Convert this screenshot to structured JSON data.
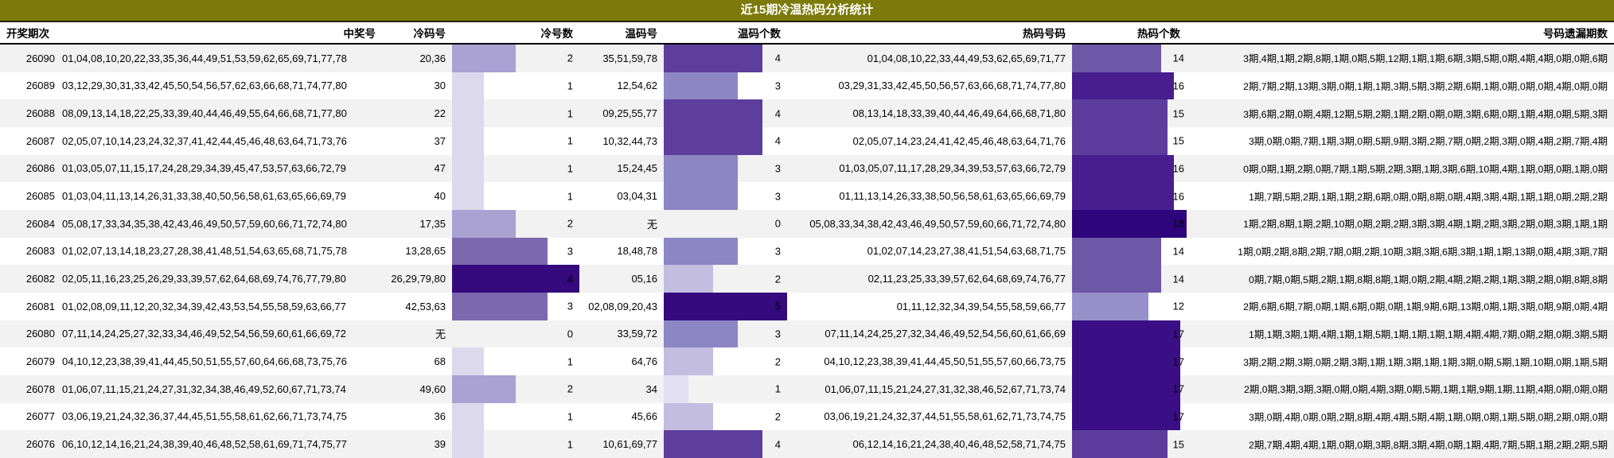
{
  "title": "近15期冷温热码分析统计",
  "columns": {
    "period": "开奖期次",
    "winning": "中奖号",
    "cold_numbers": "冷码号",
    "cold_count": "冷号数",
    "warm_numbers": "温码号",
    "warm_count": "温码个数",
    "hot_numbers": "热码号码",
    "hot_count": "热码个数",
    "omission": "号码遗漏期数"
  },
  "colors": {
    "title_bg": "#7c7a0a",
    "row_alt": "#f2f2f2",
    "cold_bar": {
      "1": "#dcd9ec",
      "2": "#a9a2d3",
      "3": "#7b68af",
      "4": "#340a7d"
    },
    "warm_bar": {
      "1": "#e3e0f1",
      "2": "#c3bee0",
      "3": "#8d86c4",
      "4": "#5d3e9d",
      "5": "#340a7d"
    },
    "hot_bar": {
      "12": "#9790ca",
      "14": "#6d57a7",
      "15": "#5c3c9c",
      "16": "#481e8e",
      "17": "#3a0e84",
      "18": "#2e057a"
    }
  },
  "bar_scales": {
    "cold": 4,
    "warm": 5,
    "hot": 18
  },
  "rows": [
    {
      "period": "26090",
      "winning": "01,04,08,10,20,22,33,35,36,44,49,51,53,59,62,65,69,71,77,78",
      "cold_numbers": "20,36",
      "cold_count": 2,
      "warm_numbers": "35,51,59,78",
      "warm_count": 4,
      "hot_numbers": "01,04,08,10,22,33,44,49,53,62,65,69,71,77",
      "hot_count": 14,
      "omission": "3期,4期,1期,2期,8期,1期,0期,5期,12期,1期,1期,6期,3期,5期,0期,4期,4期,0期,0期,6期"
    },
    {
      "period": "26089",
      "winning": "03,12,29,30,31,33,42,45,50,54,56,57,62,63,66,68,71,74,77,80",
      "cold_numbers": "30",
      "cold_count": 1,
      "warm_numbers": "12,54,62",
      "warm_count": 3,
      "hot_numbers": "03,29,31,33,42,45,50,56,57,63,66,68,71,74,77,80",
      "hot_count": 16,
      "omission": "2期,7期,2期,13期,3期,0期,1期,1期,3期,5期,3期,2期,6期,1期,0期,0期,0期,4期,0期,0期"
    },
    {
      "period": "26088",
      "winning": "08,09,13,14,18,22,25,33,39,40,44,46,49,55,64,66,68,71,77,80",
      "cold_numbers": "22",
      "cold_count": 1,
      "warm_numbers": "09,25,55,77",
      "warm_count": 4,
      "hot_numbers": "08,13,14,18,33,39,40,44,46,49,64,66,68,71,80",
      "hot_count": 15,
      "omission": "3期,6期,2期,0期,4期,12期,5期,2期,1期,2期,0期,0期,3期,6期,0期,1期,4期,0期,5期,3期"
    },
    {
      "period": "26087",
      "winning": "02,05,07,10,14,23,24,32,37,41,42,44,45,46,48,63,64,71,73,76",
      "cold_numbers": "37",
      "cold_count": 1,
      "warm_numbers": "10,32,44,73",
      "warm_count": 4,
      "hot_numbers": "02,05,07,14,23,24,41,42,45,46,48,63,64,71,76",
      "hot_count": 15,
      "omission": "3期,0期,0期,7期,1期,3期,0期,5期,9期,3期,2期,7期,0期,2期,3期,0期,4期,2期,7期,4期"
    },
    {
      "period": "26086",
      "winning": "01,03,05,07,11,15,17,24,28,29,34,39,45,47,53,57,63,66,72,79",
      "cold_numbers": "47",
      "cold_count": 1,
      "warm_numbers": "15,24,45",
      "warm_count": 3,
      "hot_numbers": "01,03,05,07,11,17,28,29,34,39,53,57,63,66,72,79",
      "hot_count": 16,
      "omission": "0期,0期,1期,2期,0期,7期,1期,5期,2期,3期,1期,3期,6期,10期,4期,1期,0期,0期,1期,0期"
    },
    {
      "period": "26085",
      "winning": "01,03,04,11,13,14,26,31,33,38,40,50,56,58,61,63,65,66,69,79",
      "cold_numbers": "40",
      "cold_count": 1,
      "warm_numbers": "03,04,31",
      "warm_count": 3,
      "hot_numbers": "01,11,13,14,26,33,38,50,56,58,61,63,65,66,69,79",
      "hot_count": 16,
      "omission": "1期,7期,5期,2期,1期,1期,2期,6期,0期,0期,8期,0期,4期,3期,4期,1期,1期,0期,2期,2期"
    },
    {
      "period": "26084",
      "winning": "05,08,17,33,34,35,38,42,43,46,49,50,57,59,60,66,71,72,74,80",
      "cold_numbers": "17,35",
      "cold_count": 2,
      "warm_numbers": "无",
      "warm_count": 0,
      "hot_numbers": "05,08,33,34,38,42,43,46,49,50,57,59,60,66,71,72,74,80",
      "hot_count": 18,
      "omission": "1期,2期,8期,1期,2期,10期,0期,2期,2期,3期,3期,4期,1期,2期,3期,2期,0期,3期,1期,1期"
    },
    {
      "period": "26083",
      "winning": "01,02,07,13,14,18,23,27,28,38,41,48,51,54,63,65,68,71,75,78",
      "cold_numbers": "13,28,65",
      "cold_count": 3,
      "warm_numbers": "18,48,78",
      "warm_count": 3,
      "hot_numbers": "01,02,07,14,23,27,38,41,51,54,63,68,71,75",
      "hot_count": 14,
      "omission": "1期,0期,2期,8期,2期,7期,0期,2期,10期,3期,3期,6期,3期,1期,1期,13期,0期,4期,3期,7期"
    },
    {
      "period": "26082",
      "winning": "02,05,11,16,23,25,26,29,33,39,57,62,64,68,69,74,76,77,79,80",
      "cold_numbers": "26,29,79,80",
      "cold_count": 4,
      "warm_numbers": "05,16",
      "warm_count": 2,
      "hot_numbers": "02,11,23,25,33,39,57,62,64,68,69,74,76,77",
      "hot_count": 14,
      "omission": "0期,7期,0期,5期,2期,1期,8期,8期,1期,0期,2期,4期,2期,2期,1期,3期,2期,0期,8期,8期"
    },
    {
      "period": "26081",
      "winning": "01,02,08,09,11,12,20,32,34,39,42,43,53,54,55,58,59,63,66,77",
      "cold_numbers": "42,53,63",
      "cold_count": 3,
      "warm_numbers": "02,08,09,20,43",
      "warm_count": 5,
      "hot_numbers": "01,11,12,32,34,39,54,55,58,59,66,77",
      "hot_count": 12,
      "omission": "2期,6期,6期,7期,0期,1期,6期,0期,0期,1期,9期,6期,13期,0期,1期,3期,0期,9期,0期,4期"
    },
    {
      "period": "26080",
      "winning": "07,11,14,24,25,27,32,33,34,46,49,52,54,56,59,60,61,66,69,72",
      "cold_numbers": "无",
      "cold_count": 0,
      "warm_numbers": "33,59,72",
      "warm_count": 3,
      "hot_numbers": "07,11,14,24,25,27,32,34,46,49,52,54,56,60,61,66,69",
      "hot_count": 17,
      "omission": "1期,1期,3期,1期,4期,1期,1期,5期,1期,1期,1期,1期,4期,4期,7期,0期,2期,0期,3期,5期"
    },
    {
      "period": "26079",
      "winning": "04,10,12,23,38,39,41,44,45,50,51,55,57,60,64,66,68,73,75,76",
      "cold_numbers": "68",
      "cold_count": 1,
      "warm_numbers": "64,76",
      "warm_count": 2,
      "hot_numbers": "04,10,12,23,38,39,41,44,45,50,51,55,57,60,66,73,75",
      "hot_count": 17,
      "omission": "3期,2期,2期,3期,0期,2期,3期,1期,1期,3期,1期,1期,3期,0期,5期,1期,10期,0期,1期,5期"
    },
    {
      "period": "26078",
      "winning": "01,06,07,11,15,21,24,27,31,32,34,38,46,49,52,60,67,71,73,74",
      "cold_numbers": "49,60",
      "cold_count": 2,
      "warm_numbers": "34",
      "warm_count": 1,
      "hot_numbers": "01,06,07,11,15,21,24,27,31,32,38,46,52,67,71,73,74",
      "hot_count": 17,
      "omission": "2期,0期,3期,3期,3期,0期,0期,4期,3期,0期,5期,1期,1期,9期,1期,11期,4期,0期,0期,0期"
    },
    {
      "period": "26077",
      "winning": "03,06,19,21,24,32,36,37,44,45,51,55,58,61,62,66,71,73,74,75",
      "cold_numbers": "36",
      "cold_count": 1,
      "warm_numbers": "45,66",
      "warm_count": 2,
      "hot_numbers": "03,06,19,21,24,32,37,44,51,55,58,61,62,71,73,74,75",
      "hot_count": 17,
      "omission": "3期,0期,4期,0期,0期,2期,8期,4期,4期,5期,4期,1期,0期,0期,1期,5期,0期,2期,0期,0期"
    },
    {
      "period": "26076",
      "winning": "06,10,12,14,16,21,24,38,39,40,46,48,52,58,61,69,71,74,75,77",
      "cold_numbers": "39",
      "cold_count": 1,
      "warm_numbers": "10,61,69,77",
      "warm_count": 4,
      "hot_numbers": "06,12,14,16,21,24,38,40,46,48,52,58,71,74,75",
      "hot_count": 15,
      "omission": "2期,7期,4期,4期,1期,0期,0期,3期,8期,3期,4期,0期,1期,4期,7期,5期,1期,2期,2期,5期"
    }
  ]
}
